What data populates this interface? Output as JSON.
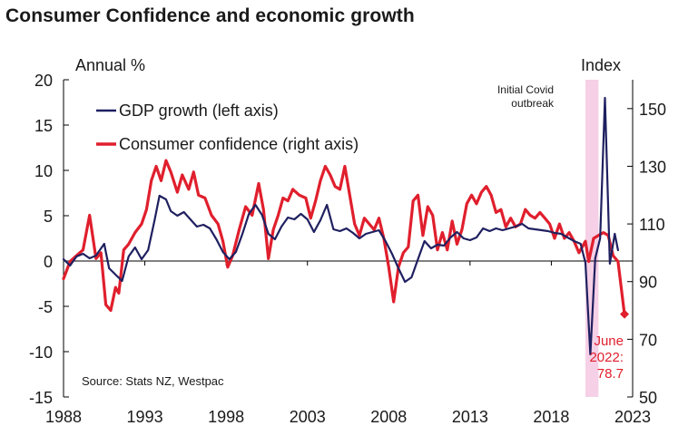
{
  "page": {
    "title": "Consumer Confidence and economic growth"
  },
  "chart_data": {
    "type": "line",
    "left_axis": {
      "label": "Annual %",
      "ylim": [
        -15,
        20
      ],
      "ticks": [
        20,
        15,
        10,
        5,
        0,
        -5,
        -10,
        -15
      ]
    },
    "right_axis": {
      "label": "Index",
      "ylim": [
        50,
        160
      ],
      "ticks": [
        150,
        130,
        110,
        90,
        70,
        50
      ]
    },
    "x_axis": {
      "xlim": [
        1988,
        2023
      ],
      "ticks": [
        "1988",
        "1993",
        "1998",
        "2003",
        "2008",
        "2013",
        "2018",
        "2023"
      ]
    },
    "grid": false,
    "legend": {
      "placement": "top-left",
      "entries": [
        "GDP growth (left axis)",
        "Consumer confidence (right axis)"
      ]
    },
    "shaded_period": {
      "from": 2020.1,
      "to": 2020.9,
      "color": "#f5d0e6"
    },
    "annotations": {
      "covid": [
        "Initial Covid",
        "outbreak"
      ],
      "latest": [
        "June",
        "2022:",
        "78.7"
      ]
    },
    "source": "Source: Stats NZ, Westpac",
    "series": [
      {
        "name": "GDP growth (left axis)",
        "axis": "left",
        "color": "#1f2060",
        "points": [
          [
            1988.0,
            0.2
          ],
          [
            1988.4,
            -0.5
          ],
          [
            1988.8,
            0.5
          ],
          [
            1989.2,
            0.8
          ],
          [
            1989.6,
            0.3
          ],
          [
            1990.0,
            0.6
          ],
          [
            1990.5,
            1.9
          ],
          [
            1990.8,
            -0.8
          ],
          [
            1991.2,
            -1.5
          ],
          [
            1991.6,
            -2.2
          ],
          [
            1992.0,
            0.5
          ],
          [
            1992.4,
            1.5
          ],
          [
            1992.8,
            0.2
          ],
          [
            1993.2,
            1.2
          ],
          [
            1993.6,
            4.5
          ],
          [
            1993.9,
            7.2
          ],
          [
            1994.3,
            6.8
          ],
          [
            1994.6,
            5.5
          ],
          [
            1995.0,
            5.0
          ],
          [
            1995.4,
            5.4
          ],
          [
            1995.8,
            4.6
          ],
          [
            1996.2,
            3.8
          ],
          [
            1996.6,
            4.0
          ],
          [
            1997.0,
            3.6
          ],
          [
            1997.4,
            2.4
          ],
          [
            1997.8,
            1.0
          ],
          [
            1998.2,
            0.2
          ],
          [
            1998.6,
            1.0
          ],
          [
            1999.0,
            3.0
          ],
          [
            1999.4,
            5.2
          ],
          [
            1999.8,
            6.2
          ],
          [
            2000.2,
            5.1
          ],
          [
            2000.6,
            3.0
          ],
          [
            2001.0,
            2.4
          ],
          [
            2001.4,
            3.8
          ],
          [
            2001.8,
            4.8
          ],
          [
            2002.2,
            4.6
          ],
          [
            2002.6,
            5.2
          ],
          [
            2003.0,
            4.6
          ],
          [
            2003.4,
            3.2
          ],
          [
            2003.8,
            4.5
          ],
          [
            2004.2,
            6.2
          ],
          [
            2004.6,
            3.5
          ],
          [
            2005.0,
            3.3
          ],
          [
            2005.4,
            3.6
          ],
          [
            2005.8,
            3.1
          ],
          [
            2006.2,
            2.5
          ],
          [
            2006.6,
            3.0
          ],
          [
            2007.0,
            3.2
          ],
          [
            2007.4,
            3.4
          ],
          [
            2007.8,
            2.2
          ],
          [
            2008.2,
            0.8
          ],
          [
            2008.6,
            -0.8
          ],
          [
            2009.0,
            -2.3
          ],
          [
            2009.4,
            -1.8
          ],
          [
            2009.8,
            0.2
          ],
          [
            2010.2,
            2.2
          ],
          [
            2010.6,
            1.4
          ],
          [
            2011.0,
            1.8
          ],
          [
            2011.4,
            1.7
          ],
          [
            2011.8,
            2.6
          ],
          [
            2012.2,
            3.2
          ],
          [
            2012.6,
            2.5
          ],
          [
            2013.0,
            2.3
          ],
          [
            2013.4,
            2.6
          ],
          [
            2013.8,
            3.6
          ],
          [
            2014.2,
            3.3
          ],
          [
            2014.6,
            3.6
          ],
          [
            2015.0,
            3.4
          ],
          [
            2015.4,
            3.6
          ],
          [
            2015.8,
            3.8
          ],
          [
            2016.2,
            4.1
          ],
          [
            2016.6,
            3.6
          ],
          [
            2017.0,
            3.5
          ],
          [
            2017.4,
            3.4
          ],
          [
            2017.8,
            3.3
          ],
          [
            2018.2,
            3.1
          ],
          [
            2018.6,
            3.0
          ],
          [
            2019.0,
            2.6
          ],
          [
            2019.4,
            2.2
          ],
          [
            2019.8,
            1.9
          ],
          [
            2020.1,
            -0.2
          ],
          [
            2020.4,
            -10.3
          ],
          [
            2020.7,
            0.3
          ],
          [
            2021.0,
            2.5
          ],
          [
            2021.3,
            18.0
          ],
          [
            2021.6,
            -0.3
          ],
          [
            2021.9,
            3.0
          ],
          [
            2022.1,
            1.2
          ]
        ]
      },
      {
        "name": "Consumer confidence (right axis)",
        "axis": "right",
        "color": "#e01f2d",
        "points": [
          [
            1988.0,
            91
          ],
          [
            1988.4,
            97
          ],
          [
            1988.8,
            99
          ],
          [
            1989.2,
            101
          ],
          [
            1989.6,
            113
          ],
          [
            1990.0,
            98
          ],
          [
            1990.3,
            100
          ],
          [
            1990.6,
            82
          ],
          [
            1990.9,
            80
          ],
          [
            1991.2,
            88
          ],
          [
            1991.4,
            86
          ],
          [
            1991.7,
            101
          ],
          [
            1992.0,
            103
          ],
          [
            1992.4,
            107
          ],
          [
            1992.8,
            110
          ],
          [
            1993.1,
            115
          ],
          [
            1993.4,
            125
          ],
          [
            1993.7,
            130
          ],
          [
            1994.0,
            125
          ],
          [
            1994.3,
            132
          ],
          [
            1994.6,
            128
          ],
          [
            1995.0,
            121
          ],
          [
            1995.3,
            127
          ],
          [
            1995.7,
            122
          ],
          [
            1996.0,
            128
          ],
          [
            1996.3,
            120
          ],
          [
            1996.7,
            119
          ],
          [
            1997.1,
            113
          ],
          [
            1997.5,
            110
          ],
          [
            1997.8,
            104
          ],
          [
            1998.1,
            95
          ],
          [
            1998.4,
            99
          ],
          [
            1998.8,
            108
          ],
          [
            1999.2,
            116
          ],
          [
            1999.6,
            113
          ],
          [
            2000.0,
            124
          ],
          [
            2000.3,
            115
          ],
          [
            2000.6,
            98
          ],
          [
            2000.9,
            108
          ],
          [
            2001.2,
            113
          ],
          [
            2001.5,
            119
          ],
          [
            2001.8,
            118
          ],
          [
            2002.1,
            122
          ],
          [
            2002.5,
            120
          ],
          [
            2002.9,
            119
          ],
          [
            2003.2,
            112
          ],
          [
            2003.5,
            118
          ],
          [
            2003.8,
            125
          ],
          [
            2004.1,
            130
          ],
          [
            2004.4,
            127
          ],
          [
            2004.7,
            123
          ],
          [
            2005.0,
            122
          ],
          [
            2005.3,
            130
          ],
          [
            2005.6,
            120
          ],
          [
            2005.9,
            110
          ],
          [
            2006.2,
            106
          ],
          [
            2006.5,
            112
          ],
          [
            2006.8,
            110
          ],
          [
            2007.1,
            108
          ],
          [
            2007.4,
            112
          ],
          [
            2007.7,
            105
          ],
          [
            2008.0,
            95
          ],
          [
            2008.3,
            83
          ],
          [
            2008.6,
            95
          ],
          [
            2008.9,
            100
          ],
          [
            2009.2,
            102
          ],
          [
            2009.5,
            118
          ],
          [
            2009.8,
            120
          ],
          [
            2010.1,
            106
          ],
          [
            2010.4,
            116
          ],
          [
            2010.7,
            113
          ],
          [
            2011.0,
            101
          ],
          [
            2011.3,
            107
          ],
          [
            2011.6,
            101
          ],
          [
            2011.9,
            111
          ],
          [
            2012.2,
            103
          ],
          [
            2012.5,
            108
          ],
          [
            2012.8,
            117
          ],
          [
            2013.1,
            120
          ],
          [
            2013.4,
            117
          ],
          [
            2013.7,
            121
          ],
          [
            2014.0,
            123
          ],
          [
            2014.3,
            120
          ],
          [
            2014.6,
            114
          ],
          [
            2014.9,
            115
          ],
          [
            2015.2,
            109
          ],
          [
            2015.5,
            112
          ],
          [
            2015.8,
            109
          ],
          [
            2016.1,
            110
          ],
          [
            2016.4,
            115
          ],
          [
            2016.7,
            113
          ],
          [
            2017.0,
            112
          ],
          [
            2017.3,
            114
          ],
          [
            2017.6,
            112
          ],
          [
            2017.9,
            110
          ],
          [
            2018.2,
            105
          ],
          [
            2018.5,
            110
          ],
          [
            2018.8,
            105
          ],
          [
            2019.1,
            107
          ],
          [
            2019.4,
            104
          ],
          [
            2019.7,
            100
          ],
          [
            2020.1,
            104
          ],
          [
            2020.3,
            97
          ],
          [
            2020.6,
            105
          ],
          [
            2020.9,
            106
          ],
          [
            2021.2,
            107
          ],
          [
            2021.5,
            106
          ],
          [
            2021.8,
            99
          ],
          [
            2022.1,
            97
          ],
          [
            2022.5,
            78.7
          ]
        ]
      }
    ],
    "latest_point": {
      "x": 2022.5,
      "y": 78.7,
      "axis": "right"
    }
  }
}
